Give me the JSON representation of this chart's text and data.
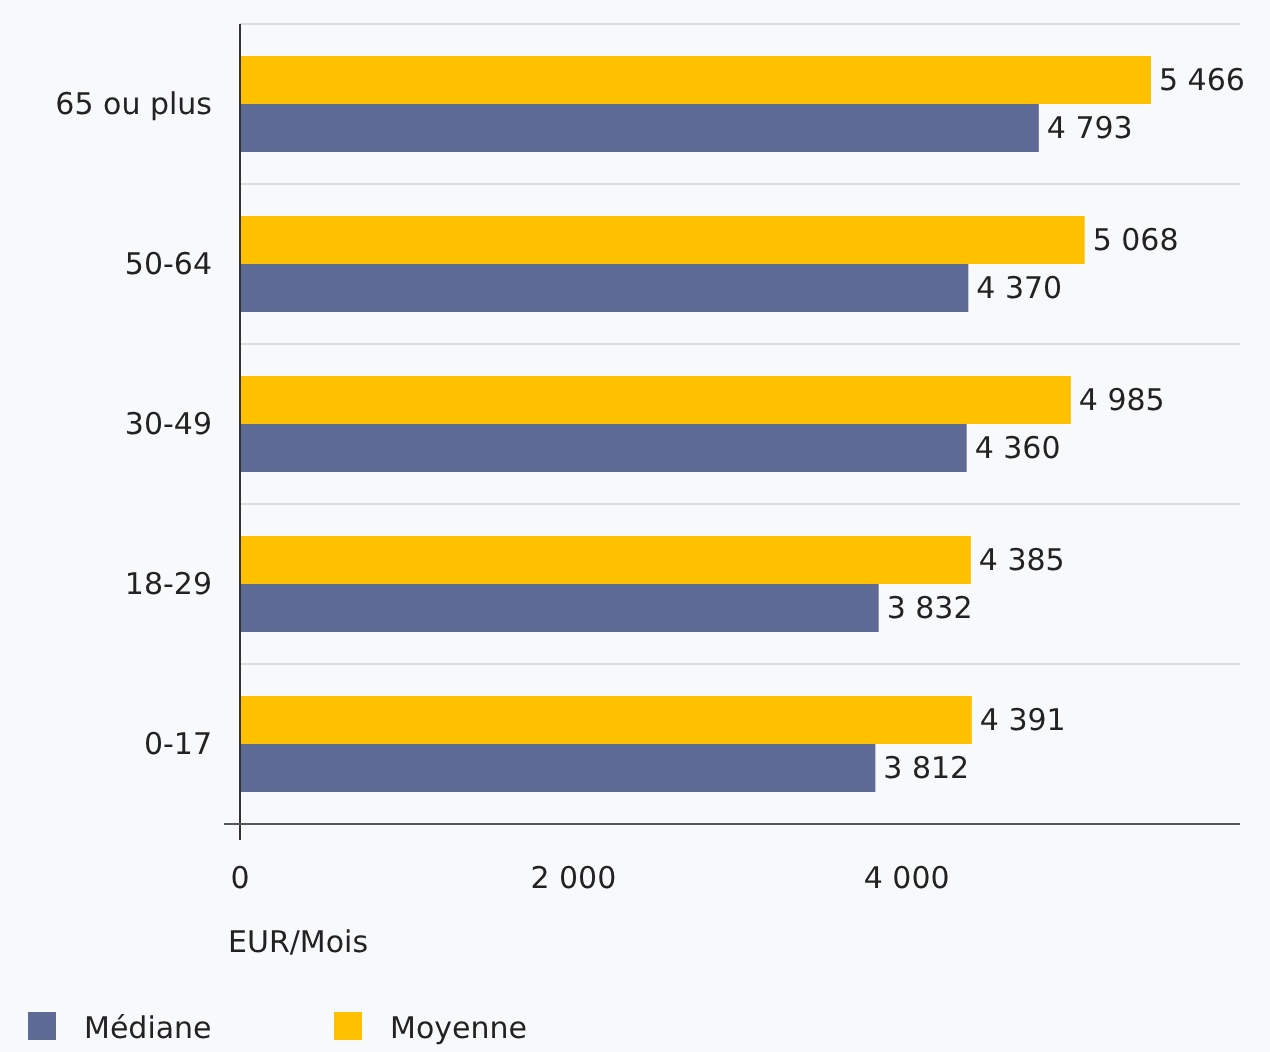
{
  "chart_data": {
    "type": "bar",
    "orientation": "horizontal",
    "xlabel": "EUR/Mois",
    "categories": [
      "65 ou plus",
      "50-64",
      "30-49",
      "18-29",
      "0-17"
    ],
    "series": [
      {
        "name": "Moyenne",
        "color": "#ffc000",
        "values": [
          5466,
          5068,
          4985,
          4385,
          4391
        ],
        "value_labels": [
          "5 466",
          "5 068",
          "4 985",
          "4 385",
          "4 391"
        ]
      },
      {
        "name": "Médiane",
        "color": "#5f6b97",
        "values": [
          4793,
          4370,
          4360,
          3832,
          3812
        ],
        "value_labels": [
          "4 793",
          "4 370",
          "4 360",
          "3 832",
          "3 812"
        ]
      }
    ],
    "xlim": [
      0,
      6000
    ],
    "xticks": [
      0,
      {
        "value": 2000,
        "label": "2 000"
      },
      {
        "value": 4000,
        "label": "4 000"
      }
    ],
    "grid": "y",
    "legend": "bottom"
  }
}
